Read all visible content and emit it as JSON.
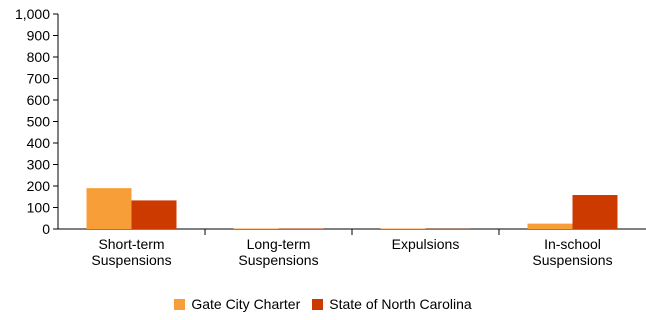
{
  "chart_data": {
    "type": "bar",
    "categories": [
      [
        "Short-term",
        "Suspensions"
      ],
      [
        "Long-term",
        "Suspensions"
      ],
      [
        "Expulsions"
      ],
      [
        "In-school",
        "Suspensions"
      ]
    ],
    "series": [
      {
        "name": "Gate City Charter",
        "color": "#F89E38",
        "values": [
          190,
          0,
          0,
          25
        ]
      },
      {
        "name": "State of North Carolina",
        "color": "#CC3A00",
        "values": [
          133,
          2,
          1,
          158
        ]
      }
    ],
    "title": "",
    "xlabel": "",
    "ylabel": "",
    "ylim": [
      0,
      1000
    ],
    "yticks": [
      0,
      100,
      200,
      300,
      400,
      500,
      600,
      700,
      800,
      900,
      1000
    ],
    "ytick_labels": [
      "0",
      "100",
      "200",
      "300",
      "400",
      "500",
      "600",
      "700",
      "800",
      "900",
      "1,000"
    ],
    "grid": false,
    "legend_position": "bottom-center"
  }
}
